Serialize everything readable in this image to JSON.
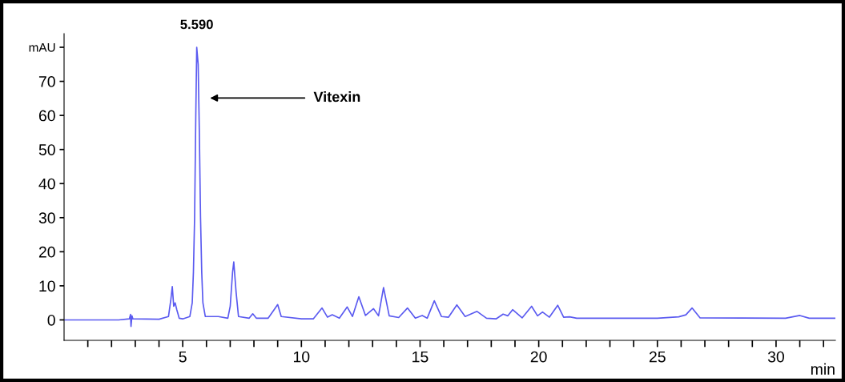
{
  "chart_data": {
    "type": "line",
    "xlabel": "min",
    "color": "#5a5af0",
    "x": [
      0,
      2.3,
      2.75,
      2.8,
      2.82,
      2.86,
      2.9,
      4.0,
      4.4,
      4.5,
      4.56,
      4.62,
      4.68,
      4.75,
      4.85,
      5.0,
      5.3,
      5.4,
      5.45,
      5.5,
      5.55,
      5.59,
      5.65,
      5.7,
      5.75,
      5.8,
      5.85,
      5.95,
      6.5,
      6.9,
      7.0,
      7.1,
      7.15,
      7.25,
      7.35,
      7.8,
      7.95,
      8.1,
      8.6,
      8.85,
      9.0,
      9.15,
      10.0,
      10.5,
      10.87,
      11.1,
      11.3,
      11.6,
      11.93,
      12.15,
      12.42,
      12.7,
      13.04,
      13.25,
      13.46,
      13.7,
      14.1,
      14.47,
      14.8,
      15.09,
      15.3,
      15.6,
      15.9,
      16.2,
      16.55,
      16.9,
      17.4,
      17.8,
      18.2,
      18.5,
      18.7,
      18.9,
      19.3,
      19.7,
      19.95,
      20.16,
      20.45,
      20.8,
      21.05,
      21.3,
      21.6,
      25.0,
      25.9,
      26.2,
      26.46,
      26.8,
      30.4,
      31.0,
      31.4,
      32.5
    ],
    "values": [
      0,
      0,
      0.3,
      1.6,
      -1.9,
      1.2,
      0.3,
      0.2,
      1,
      6,
      9.8,
      4,
      5,
      3,
      0.5,
      0.3,
      1,
      5,
      14,
      30,
      60,
      80,
      75,
      55,
      30,
      14,
      5,
      1,
      1,
      0.5,
      4,
      14,
      17,
      8,
      1,
      0.5,
      1.8,
      0.5,
      0.5,
      3,
      4.5,
      1,
      0.3,
      0.3,
      3.5,
      0.8,
      1.5,
      0.5,
      3.8,
      1,
      6.8,
      1.3,
      3.3,
      1.2,
      9.5,
      1.2,
      0.7,
      3.5,
      0.5,
      1.3,
      0.5,
      5.6,
      1,
      0.8,
      4.4,
      1,
      2.5,
      0.5,
      0.3,
      1.7,
      1.2,
      3.0,
      0.6,
      4.0,
      1.2,
      2.3,
      0.8,
      4.3,
      0.8,
      0.9,
      0.5,
      0.5,
      0.9,
      1.5,
      3.5,
      0.6,
      0.5,
      1.3,
      0.5,
      0.5
    ],
    "xlim": [
      0,
      32.5
    ],
    "ylim": [
      -6,
      84
    ],
    "xticks": [
      {
        "value": 1,
        "label": null
      },
      {
        "value": 2,
        "label": null
      },
      {
        "value": 3,
        "label": null
      },
      {
        "value": 4,
        "label": null
      },
      5,
      {
        "value": 6,
        "label": null
      },
      {
        "value": 7,
        "label": null
      },
      {
        "value": 8,
        "label": null
      },
      {
        "value": 9,
        "label": null
      },
      10,
      {
        "value": 11,
        "label": null
      },
      {
        "value": 12,
        "label": null
      },
      {
        "value": 13,
        "label": null
      },
      {
        "value": 14,
        "label": null
      },
      15,
      {
        "value": 16,
        "label": null
      },
      {
        "value": 17,
        "label": null
      },
      {
        "value": 18,
        "label": null
      },
      {
        "value": 19,
        "label": null
      },
      20,
      {
        "value": 21,
        "label": null
      },
      {
        "value": 22,
        "label": null
      },
      {
        "value": 23,
        "label": null
      },
      {
        "value": 24,
        "label": null
      },
      25,
      {
        "value": 26,
        "label": null
      },
      {
        "value": 27,
        "label": null
      },
      {
        "value": 28,
        "label": null
      },
      {
        "value": 29,
        "label": null
      },
      30,
      {
        "value": 31,
        "label": null
      },
      {
        "value": 32,
        "label": null
      }
    ],
    "yticks": [
      0,
      10,
      20,
      30,
      40,
      50,
      60,
      70,
      {
        "value": 80,
        "label": "mAU"
      }
    ],
    "annotations": [
      {
        "text": "5.590",
        "x": 5.59,
        "y": 80
      },
      "Vitexin"
    ],
    "grid": false,
    "legend": false,
    "marker": "none",
    "line_style": "solid"
  }
}
